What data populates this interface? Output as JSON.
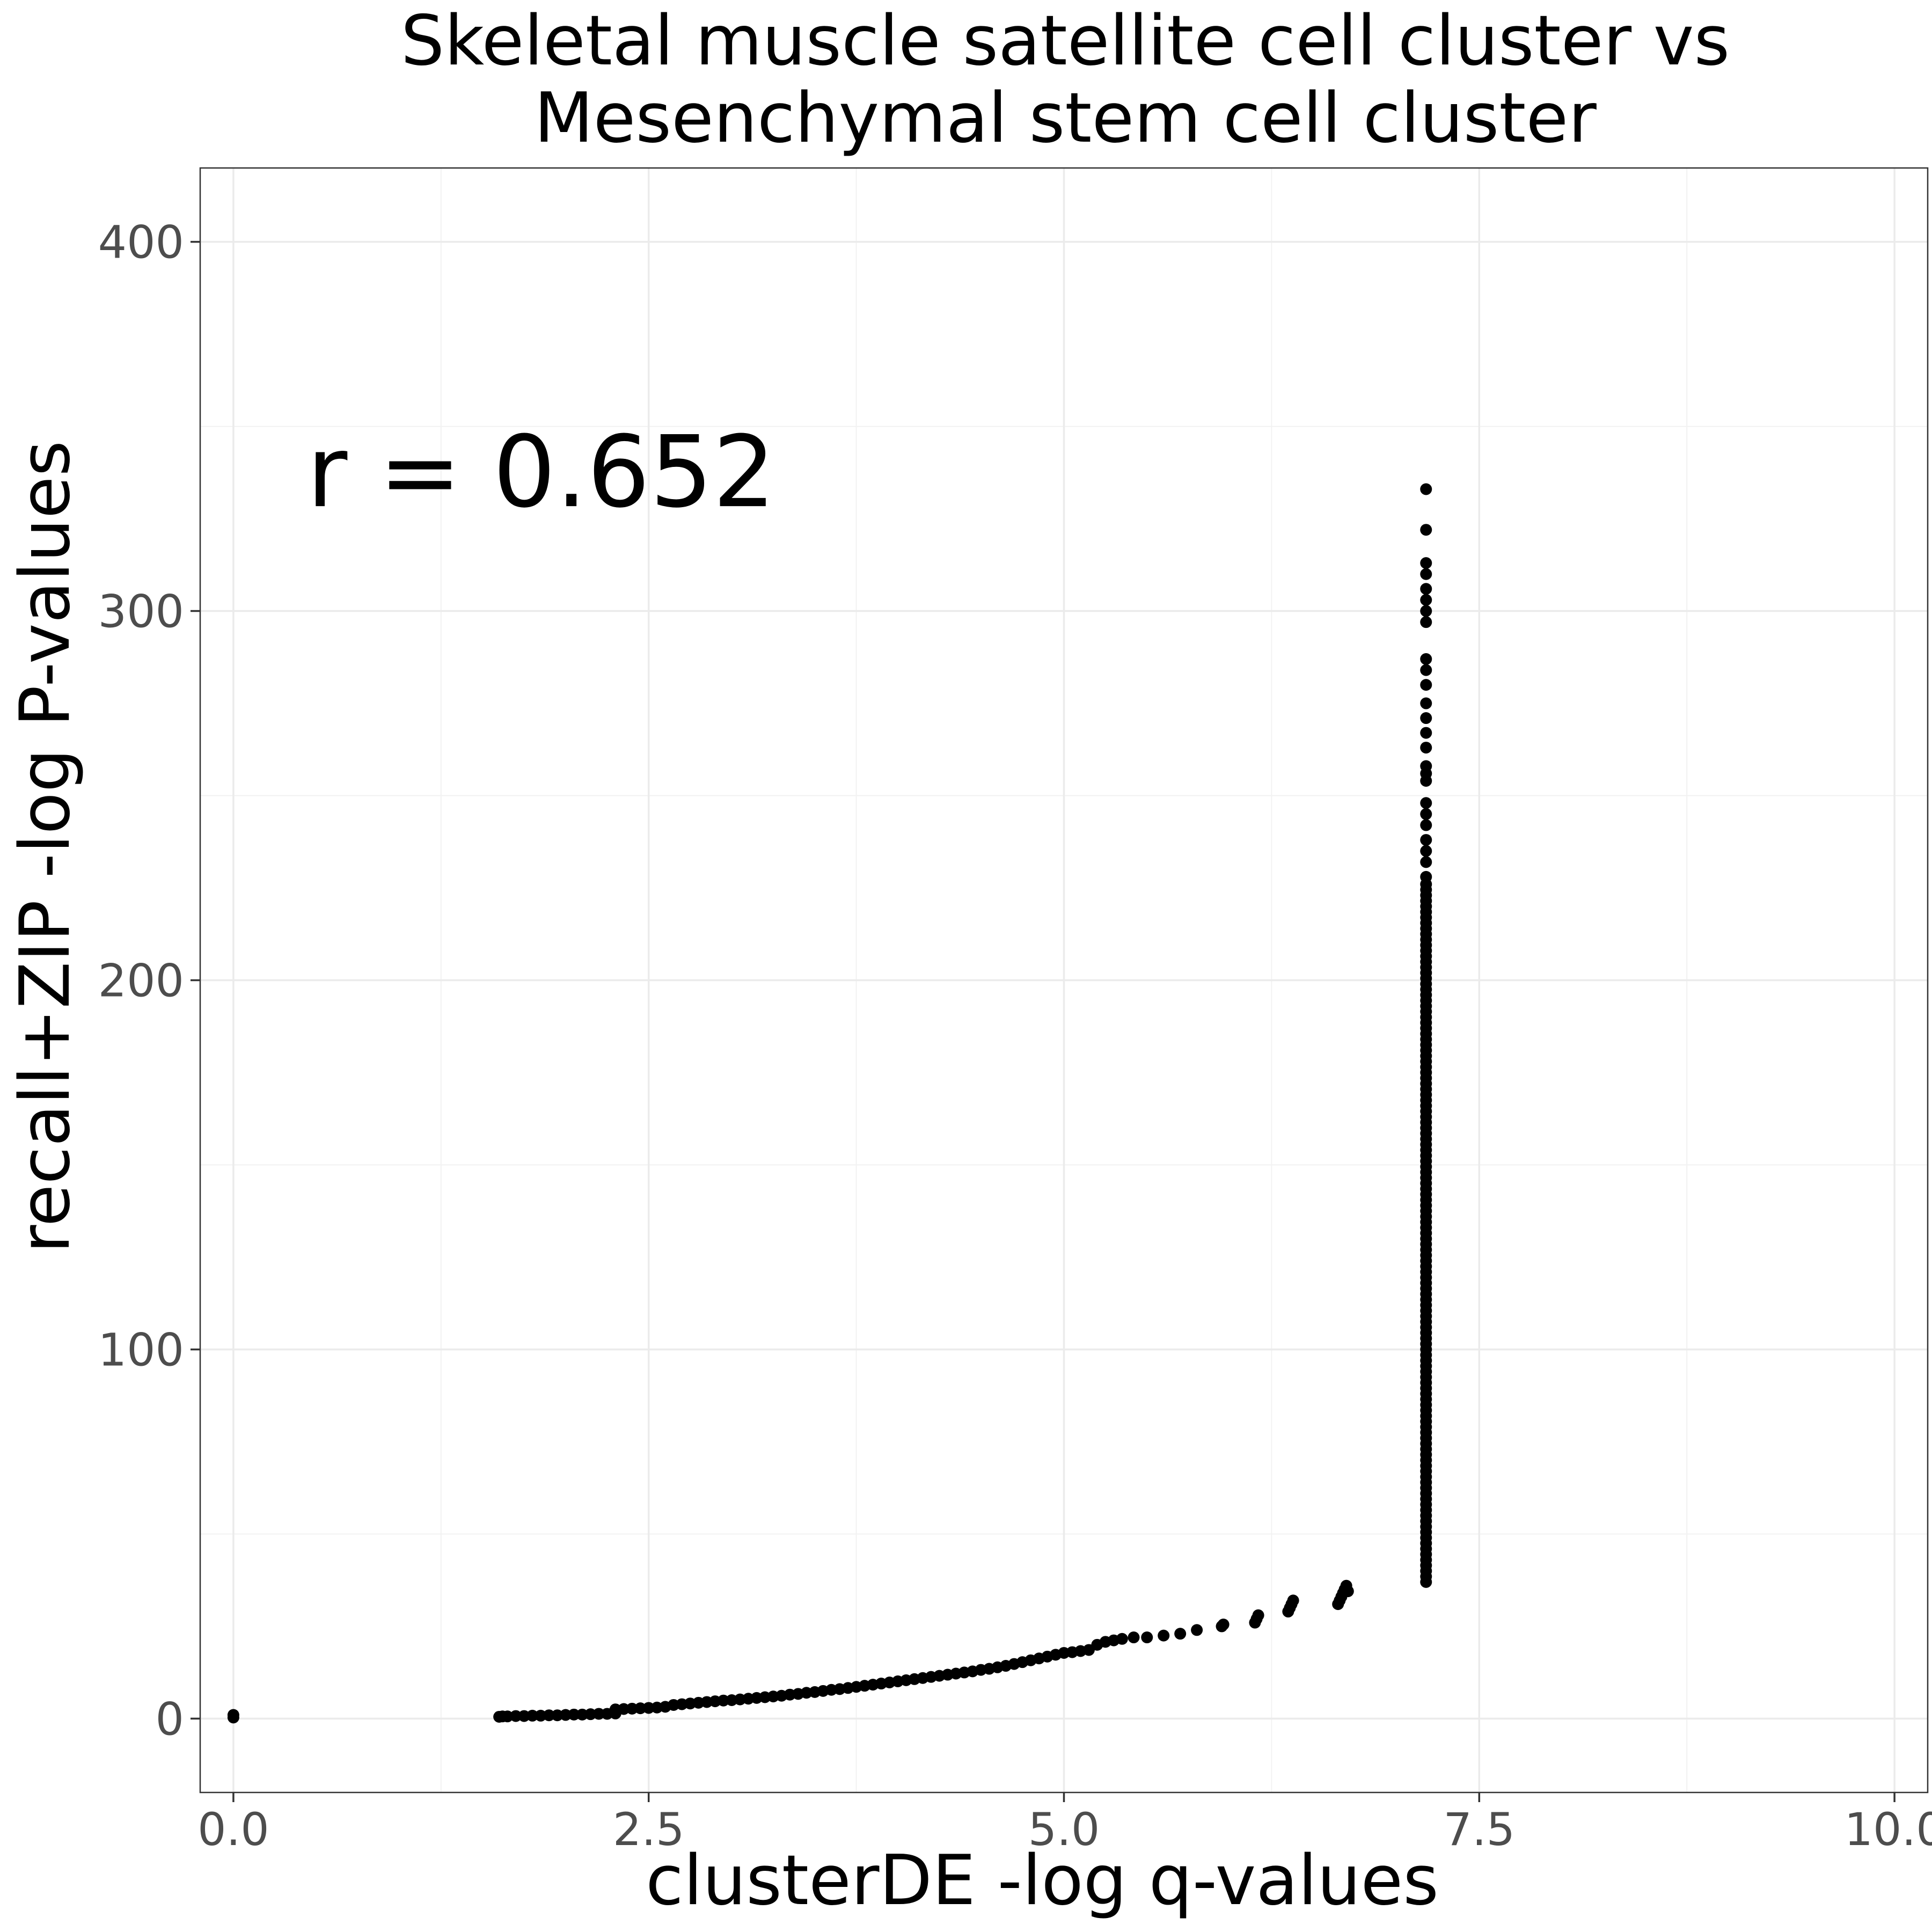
{
  "chart_data": {
    "type": "scatter",
    "title_lines": [
      "Skeletal muscle satellite cell cluster vs",
      "Mesenchymal stem cell cluster"
    ],
    "xlabel": "clusterDE -log q-values",
    "ylabel": "recall+ZIP -log P-values",
    "xlim": [
      -0.2,
      10.2
    ],
    "ylim": [
      -20,
      420
    ],
    "x_ticks": [
      0.0,
      2.5,
      5.0,
      7.5,
      10.0
    ],
    "x_tick_labels": [
      "0.0",
      "2.5",
      "5.0",
      "7.5",
      "10.0"
    ],
    "y_ticks": [
      0,
      100,
      200,
      300,
      400
    ],
    "y_tick_labels": [
      "0",
      "100",
      "200",
      "300",
      "400"
    ],
    "grid": true,
    "annotation": {
      "text": "r = 0.652",
      "x": 0.5,
      "y": 338
    },
    "point_color": "#000000",
    "points": [
      [
        0.0,
        0.3
      ],
      [
        0.0,
        1.0
      ],
      [
        1.6,
        0.5
      ],
      [
        1.62,
        0.6
      ],
      [
        1.65,
        0.6
      ],
      [
        1.7,
        0.7
      ],
      [
        1.75,
        0.7
      ],
      [
        1.8,
        0.8
      ],
      [
        1.85,
        0.8
      ],
      [
        1.9,
        0.9
      ],
      [
        1.95,
        0.9
      ],
      [
        2.0,
        1.0
      ],
      [
        2.05,
        1.1
      ],
      [
        2.1,
        1.1
      ],
      [
        2.15,
        1.2
      ],
      [
        2.2,
        1.3
      ],
      [
        2.25,
        1.3
      ],
      [
        2.3,
        1.4
      ],
      [
        2.3,
        2.5
      ],
      [
        2.35,
        2.6
      ],
      [
        2.4,
        2.7
      ],
      [
        2.45,
        2.8
      ],
      [
        2.5,
        2.9
      ],
      [
        2.55,
        3.0
      ],
      [
        2.6,
        3.2
      ],
      [
        2.65,
        3.7
      ],
      [
        2.7,
        3.9
      ],
      [
        2.75,
        4.1
      ],
      [
        2.8,
        4.3
      ],
      [
        2.85,
        4.5
      ],
      [
        2.9,
        4.7
      ],
      [
        2.95,
        4.9
      ],
      [
        3.0,
        5.0
      ],
      [
        3.05,
        5.2
      ],
      [
        3.1,
        5.4
      ],
      [
        3.15,
        5.6
      ],
      [
        3.2,
        5.8
      ],
      [
        3.25,
        6.0
      ],
      [
        3.3,
        6.2
      ],
      [
        3.35,
        6.5
      ],
      [
        3.4,
        6.7
      ],
      [
        3.45,
        7.0
      ],
      [
        3.5,
        7.2
      ],
      [
        3.55,
        7.5
      ],
      [
        3.6,
        7.8
      ],
      [
        3.65,
        8.0
      ],
      [
        3.7,
        8.3
      ],
      [
        3.75,
        8.6
      ],
      [
        3.8,
        8.9
      ],
      [
        3.85,
        9.2
      ],
      [
        3.9,
        9.5
      ],
      [
        3.95,
        9.8
      ],
      [
        4.0,
        10.1
      ],
      [
        4.05,
        10.4
      ],
      [
        4.1,
        10.7
      ],
      [
        4.15,
        11.0
      ],
      [
        4.2,
        11.3
      ],
      [
        4.25,
        11.6
      ],
      [
        4.3,
        11.9
      ],
      [
        4.35,
        12.2
      ],
      [
        4.4,
        12.5
      ],
      [
        4.45,
        12.8
      ],
      [
        4.5,
        13.2
      ],
      [
        4.55,
        13.5
      ],
      [
        4.6,
        13.9
      ],
      [
        4.65,
        14.3
      ],
      [
        4.7,
        14.8
      ],
      [
        4.75,
        15.3
      ],
      [
        4.8,
        15.8
      ],
      [
        4.85,
        16.3
      ],
      [
        4.9,
        16.8
      ],
      [
        4.95,
        17.3
      ],
      [
        5.0,
        17.8
      ],
      [
        5.05,
        18.0
      ],
      [
        5.1,
        18.3
      ],
      [
        5.15,
        18.6
      ],
      [
        5.2,
        20.0
      ],
      [
        5.25,
        20.8
      ],
      [
        5.3,
        21.2
      ],
      [
        5.35,
        21.6
      ],
      [
        5.42,
        22.0
      ],
      [
        5.5,
        22.0
      ],
      [
        5.6,
        22.5
      ],
      [
        5.7,
        23.0
      ],
      [
        5.8,
        24.0
      ],
      [
        5.95,
        25.0
      ],
      [
        5.96,
        25.5
      ],
      [
        6.15,
        26.0
      ],
      [
        6.16,
        27.0
      ],
      [
        6.17,
        28.0
      ],
      [
        6.35,
        29.0
      ],
      [
        6.36,
        30.0
      ],
      [
        6.37,
        31.0
      ],
      [
        6.38,
        32.0
      ],
      [
        6.65,
        31.0
      ],
      [
        6.66,
        32.0
      ],
      [
        6.67,
        33.0
      ],
      [
        6.68,
        34.0
      ],
      [
        6.69,
        35.0
      ],
      [
        6.7,
        36.0
      ],
      [
        6.71,
        34.5
      ],
      [
        7.18,
        333
      ],
      [
        7.18,
        322
      ],
      [
        7.18,
        313
      ],
      [
        7.18,
        310
      ],
      [
        7.18,
        306
      ],
      [
        7.18,
        303
      ],
      [
        7.18,
        300
      ],
      [
        7.18,
        297
      ],
      [
        7.18,
        287
      ],
      [
        7.18,
        284
      ],
      [
        7.18,
        280
      ],
      [
        7.18,
        275
      ],
      [
        7.18,
        271
      ],
      [
        7.18,
        267
      ],
      [
        7.18,
        263
      ],
      [
        7.18,
        258
      ],
      [
        7.18,
        256
      ],
      [
        7.18,
        254
      ],
      [
        7.18,
        248
      ],
      [
        7.18,
        245
      ],
      [
        7.18,
        242
      ],
      [
        7.18,
        238
      ],
      [
        7.18,
        235
      ],
      [
        7.18,
        232
      ],
      [
        7.18,
        228
      ]
    ],
    "vertical_band": {
      "x": 7.18,
      "y_from": 37,
      "y_to": 226,
      "step": 1.5
    }
  }
}
